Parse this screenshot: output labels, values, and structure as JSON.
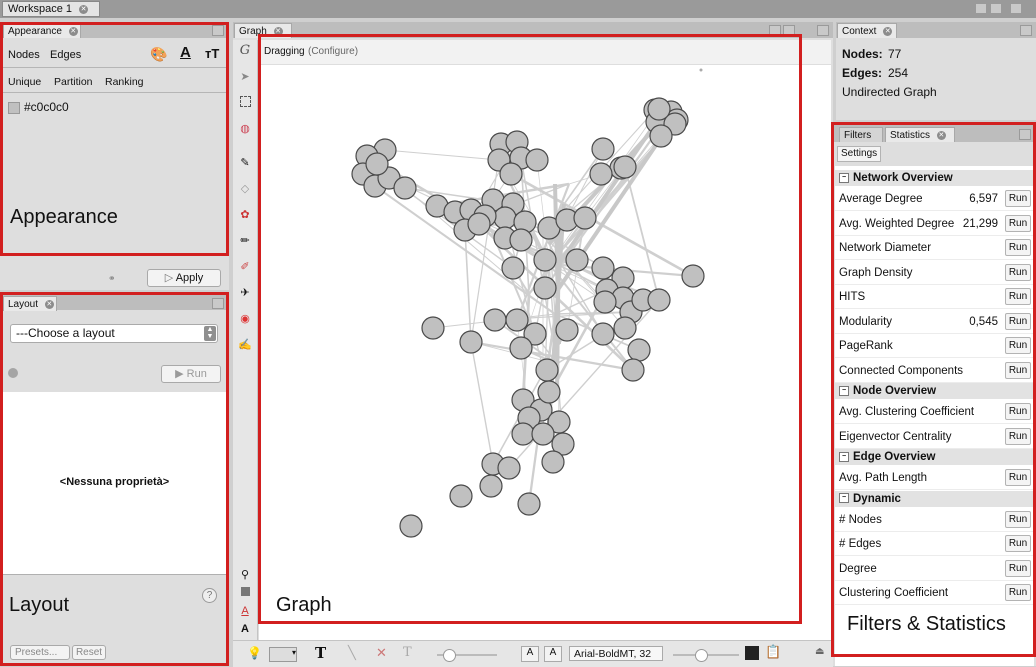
{
  "workspace_tab": "Workspace 1",
  "appearance": {
    "tab": "Appearance",
    "mode_nodes": "Nodes",
    "mode_edges": "Edges",
    "sub_unique": "Unique",
    "sub_partition": "Partition",
    "sub_ranking": "Ranking",
    "color_value": "#c0c0c0",
    "apply_label": "Apply",
    "annotation": "Appearance"
  },
  "layout": {
    "tab": "Layout",
    "chooser": "---Choose a layout",
    "run_label": "Run",
    "no_properties": "<Nessuna proprietà>",
    "presets_label": "Presets...",
    "reset_label": "Reset",
    "help": "?",
    "annotation": "Layout"
  },
  "graph": {
    "tab": "Graph",
    "mode": "Dragging",
    "configure": "(Configure)",
    "font_label": "Arial-BoldMT, 32",
    "annotation": "Graph",
    "node_color": "#c0c0c0"
  },
  "context": {
    "tab": "Context",
    "nodes_label": "Nodes:",
    "nodes_value": "77",
    "edges_label": "Edges:",
    "edges_value": "254",
    "graph_type": "Undirected Graph"
  },
  "statistics": {
    "tab_filters": "Filters",
    "tab_statistics": "Statistics",
    "settings_label": "Settings",
    "run_label": "Run",
    "annotation": "Filters & Statistics",
    "sections": [
      {
        "title": "Network Overview",
        "rows": [
          {
            "label": "Average Degree",
            "value": "6,597"
          },
          {
            "label": "Avg. Weighted Degree",
            "value": "21,299"
          },
          {
            "label": "Network Diameter",
            "value": ""
          },
          {
            "label": "Graph Density",
            "value": ""
          },
          {
            "label": "HITS",
            "value": ""
          },
          {
            "label": "Modularity",
            "value": "0,545"
          },
          {
            "label": "PageRank",
            "value": ""
          },
          {
            "label": "Connected Components",
            "value": ""
          }
        ]
      },
      {
        "title": "Node Overview",
        "rows": [
          {
            "label": "Avg. Clustering Coefficient",
            "value": ""
          },
          {
            "label": "Eigenvector Centrality",
            "value": ""
          }
        ]
      },
      {
        "title": "Edge Overview",
        "rows": [
          {
            "label": "Avg. Path Length",
            "value": ""
          }
        ]
      },
      {
        "title": "Dynamic",
        "rows": [
          {
            "label": "# Nodes",
            "value": ""
          },
          {
            "label": "# Edges",
            "value": ""
          },
          {
            "label": "Degree",
            "value": ""
          },
          {
            "label": "Clustering Coefficient",
            "value": ""
          }
        ]
      }
    ]
  }
}
